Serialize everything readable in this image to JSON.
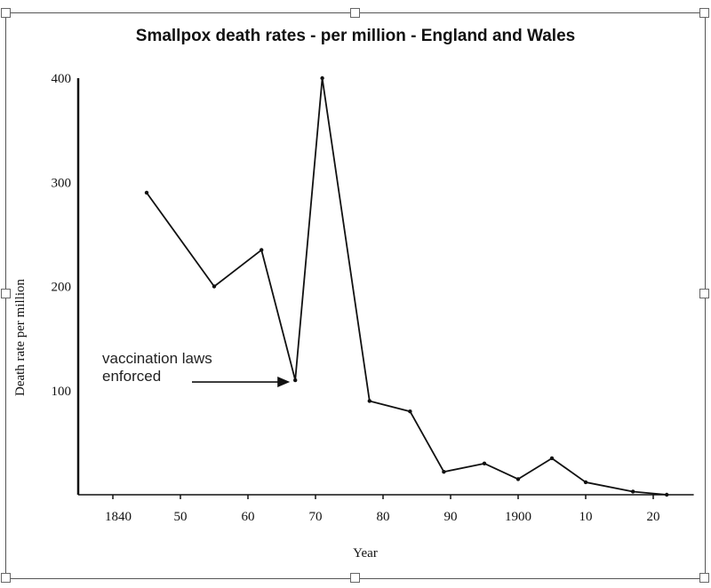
{
  "chart_data": {
    "type": "line",
    "title": "Smallpox death rates - per million - England and Wales",
    "xlabel": "Year",
    "ylabel": "Death rate per million",
    "xlim": [
      1836,
      1926
    ],
    "ylim": [
      0,
      400
    ],
    "x_ticks": [
      1840,
      1850,
      1860,
      1870,
      1880,
      1890,
      1900,
      1910,
      1920
    ],
    "x_tick_labels": [
      "1840",
      "50",
      "60",
      "70",
      "80",
      "90",
      "1900",
      "10",
      "20"
    ],
    "y_ticks": [
      100,
      200,
      300,
      400
    ],
    "y_tick_labels": [
      "100",
      "200",
      "300",
      "400"
    ],
    "grid": false,
    "series": [
      {
        "x": [
          1845,
          1855,
          1862,
          1867,
          1871,
          1878,
          1884,
          1889,
          1895,
          1900,
          1905,
          1910,
          1917,
          1922
        ],
        "y": [
          290,
          200,
          235,
          110,
          400,
          90,
          80,
          22,
          30,
          15,
          35,
          12,
          3,
          0
        ],
        "color": "#111111"
      }
    ],
    "annotations": [
      {
        "text_lines": [
          "vaccination laws",
          "enforced"
        ],
        "points_to": {
          "x": 1867,
          "y": 110
        }
      }
    ]
  }
}
